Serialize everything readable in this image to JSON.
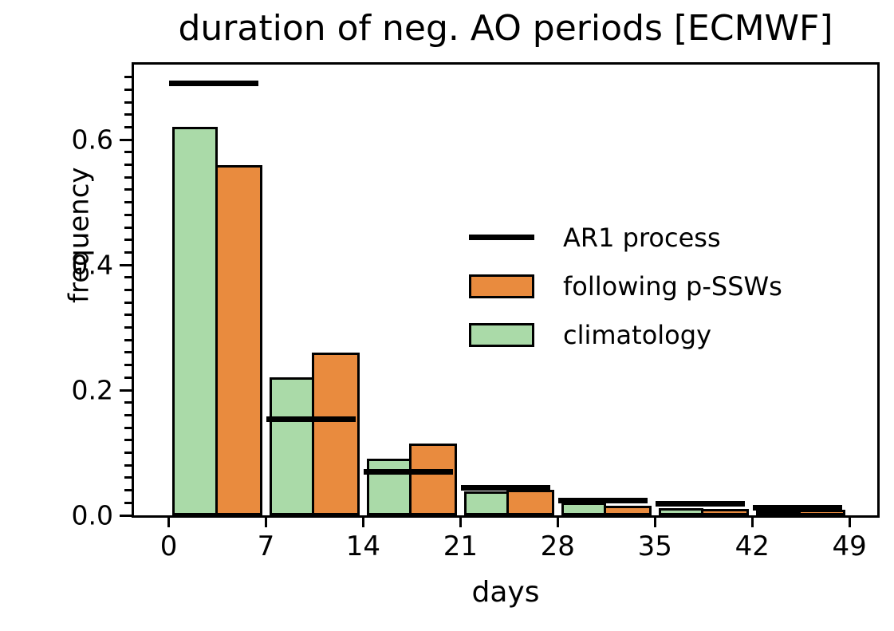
{
  "chart_data": {
    "type": "bar",
    "title": "duration of neg. AO periods [ECMWF]",
    "xlabel": "days",
    "ylabel": "frequency",
    "bin_edges": [
      0,
      7,
      14,
      21,
      28,
      35,
      42,
      49
    ],
    "x_ticks": [
      0,
      7,
      14,
      21,
      28,
      35,
      42,
      49
    ],
    "y_ticks": [
      0.0,
      0.2,
      0.4,
      0.6
    ],
    "y_tick_labels": [
      "0.0",
      "0.2",
      "0.4",
      "0.6"
    ],
    "y_minor_step": 0.02,
    "xlim": [
      -2.5,
      51
    ],
    "ylim": [
      0,
      0.72
    ],
    "grid": false,
    "series": [
      {
        "name": "AR1 process",
        "style": "hline",
        "color": "#000000",
        "values": [
          0.69,
          0.153,
          0.07,
          0.044,
          0.024,
          0.018,
          0.012
        ]
      },
      {
        "name": "following p-SSWs",
        "style": "bar-right-half",
        "color": "#e98b3e",
        "edge_color": "#000000",
        "values": [
          0.56,
          0.26,
          0.115,
          0.041,
          0.015,
          0.01,
          0.009
        ]
      },
      {
        "name": "climatology",
        "style": "bar-left-half",
        "color": "#aadaa8",
        "edge_color": "#000000",
        "values": [
          0.62,
          0.22,
          0.09,
          0.038,
          0.02,
          0.012,
          0.008
        ]
      }
    ],
    "legend": {
      "position": "center-right-inside",
      "frame": false,
      "entries": [
        {
          "label": "AR1 process",
          "swatch": "line",
          "color": "#000000"
        },
        {
          "label": "following p-SSWs",
          "swatch": "patch",
          "color": "#e98b3e"
        },
        {
          "label": "climatology",
          "swatch": "patch",
          "color": "#aadaa8"
        }
      ]
    }
  }
}
